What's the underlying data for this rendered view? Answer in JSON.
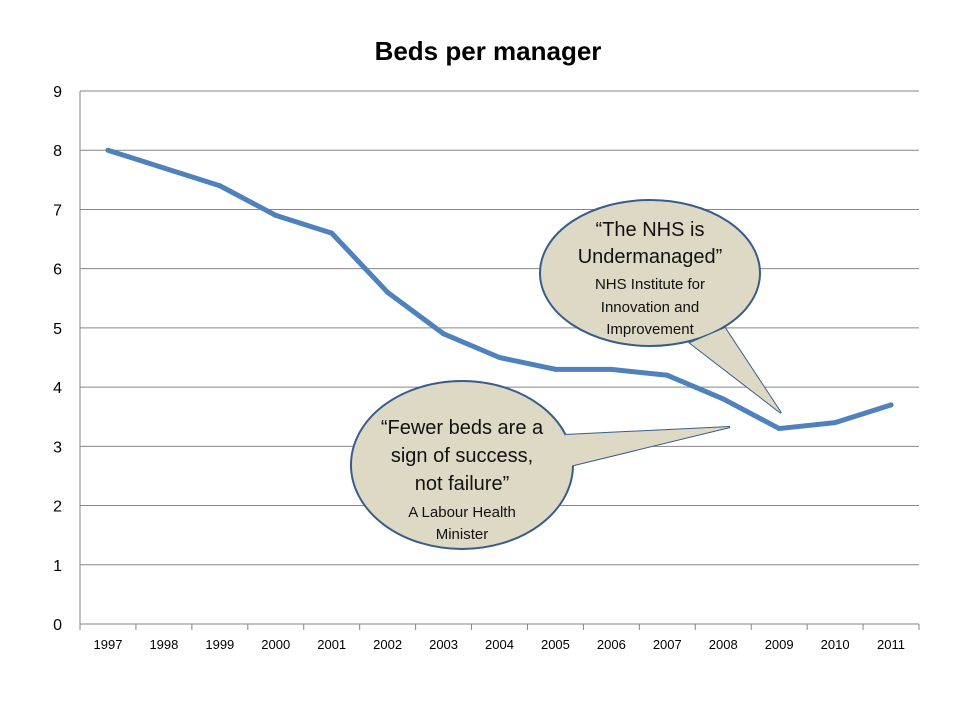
{
  "chart_data": {
    "type": "line",
    "title": "Beds per manager",
    "xlabel": "",
    "ylabel": "",
    "categories": [
      "1997",
      "1998",
      "1999",
      "2000",
      "2001",
      "2002",
      "2003",
      "2004",
      "2005",
      "2006",
      "2007",
      "2008",
      "2009",
      "2010",
      "2011"
    ],
    "series": [
      {
        "values": [
          8.0,
          7.7,
          7.4,
          6.9,
          6.6,
          5.6,
          4.9,
          4.5,
          4.3,
          4.3,
          4.2,
          3.8,
          3.3,
          3.4,
          3.7
        ]
      }
    ],
    "ylim": [
      0,
      9
    ],
    "yticks": [
      "0",
      "1",
      "2",
      "3",
      "4",
      "5",
      "6",
      "7",
      "8",
      "9"
    ],
    "grid": true,
    "legend": "none",
    "line_color": "#4F81BD",
    "callouts": [
      {
        "quote_lines": [
          "“The NHS is",
          "Undermanaged”"
        ],
        "attribution_lines": [
          "NHS Institute for",
          "Innovation and",
          "Improvement"
        ],
        "points_to": "2009"
      },
      {
        "quote_lines": [
          "“Fewer beds are a",
          "sign of success,",
          "not failure”"
        ],
        "attribution_lines": [
          "A Labour Health",
          "Minister"
        ],
        "points_to": "2008"
      }
    ],
    "callout_fill": "#DDD9C4",
    "callout_stroke": "#385D8A"
  }
}
